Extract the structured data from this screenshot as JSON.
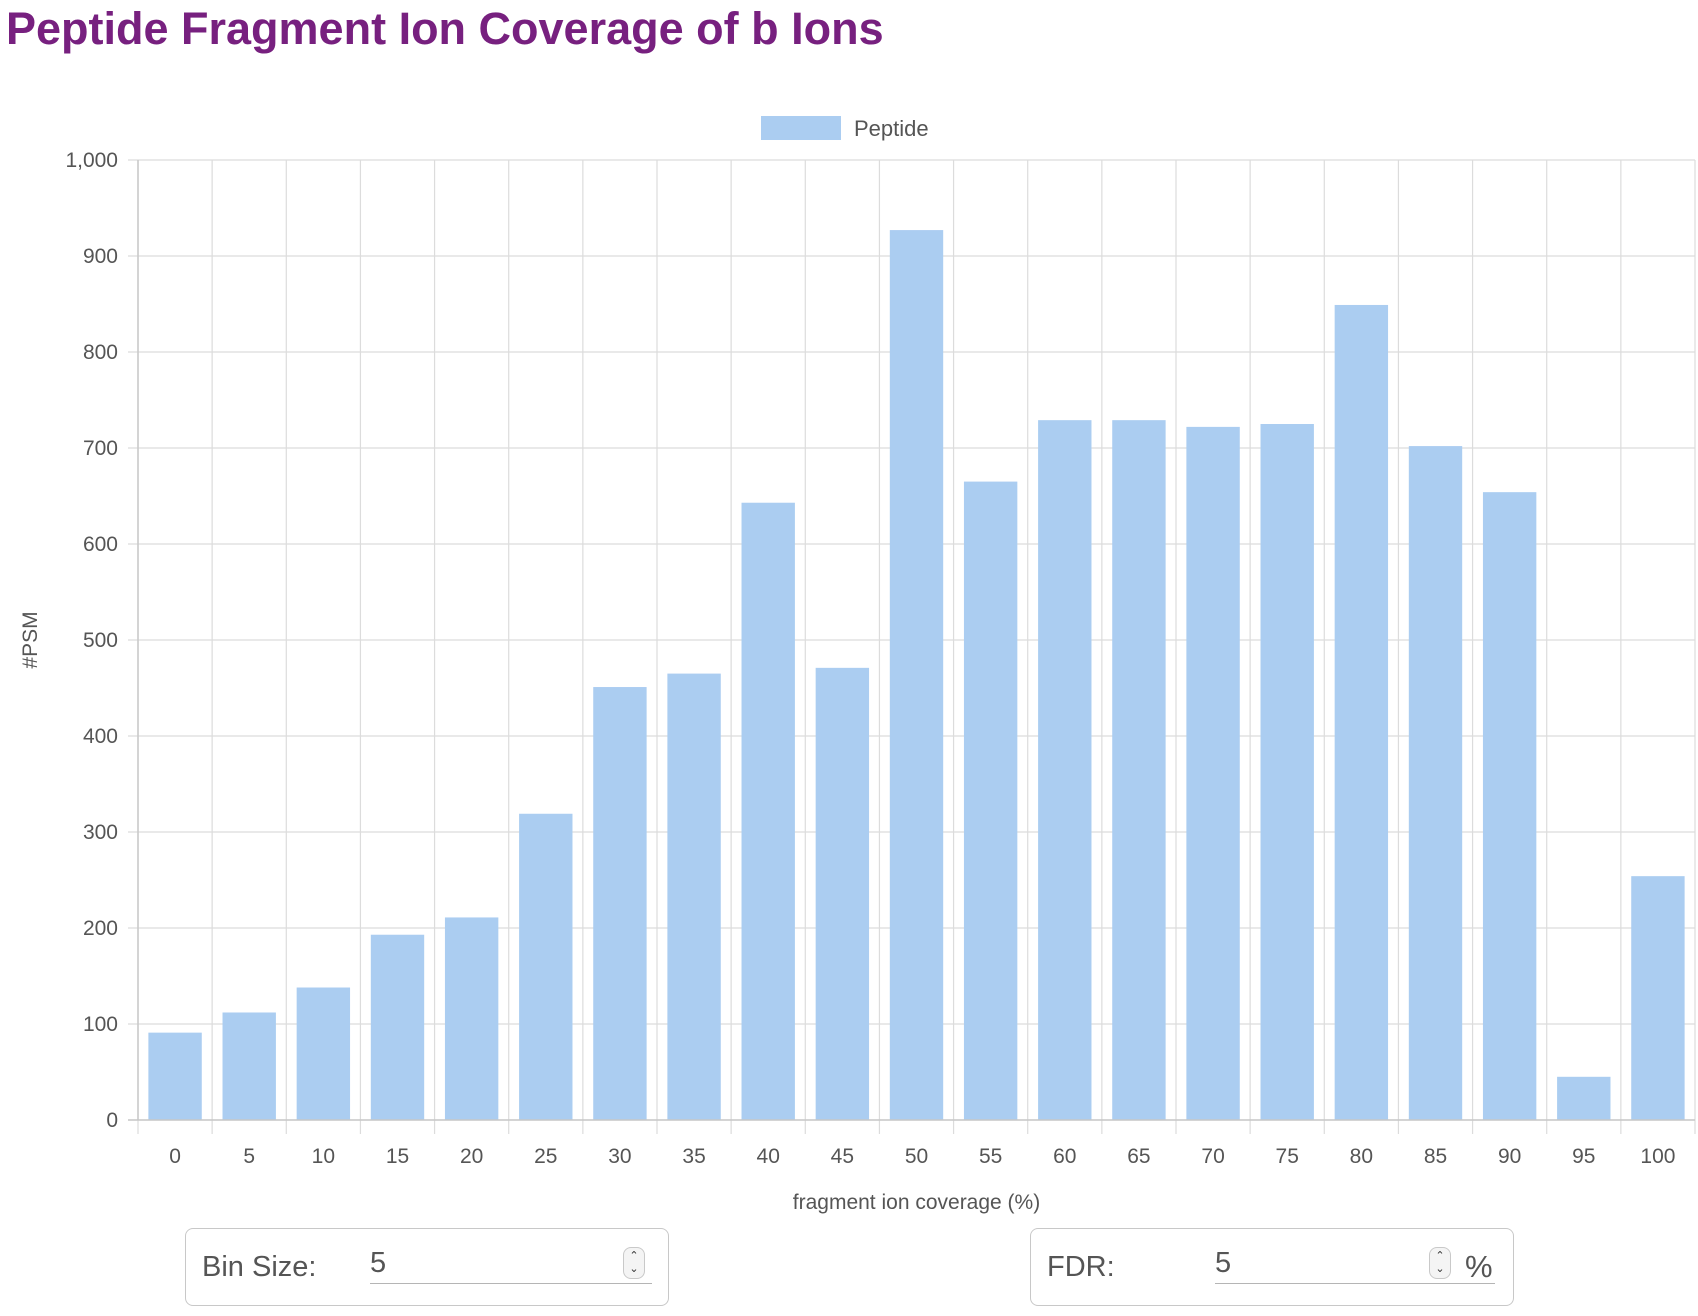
{
  "page": {
    "title": "Peptide Fragment Ion Coverage of b Ions"
  },
  "chart_data": {
    "type": "bar",
    "categories": [
      "0",
      "5",
      "10",
      "15",
      "20",
      "25",
      "30",
      "35",
      "40",
      "45",
      "50",
      "55",
      "60",
      "65",
      "70",
      "75",
      "80",
      "85",
      "90",
      "95",
      "100"
    ],
    "series": [
      {
        "name": "Peptide",
        "values": [
          91,
          112,
          138,
          193,
          211,
          319,
          451,
          465,
          643,
          471,
          927,
          665,
          729,
          729,
          722,
          725,
          849,
          702,
          654,
          45,
          254
        ]
      }
    ],
    "xlabel": "fragment ion coverage (%)",
    "ylabel": "#PSM",
    "ylim": [
      0,
      1000
    ],
    "yticks": [
      "0",
      "100",
      "200",
      "300",
      "400",
      "500",
      "600",
      "700",
      "800",
      "900",
      "1,000"
    ],
    "grid": true,
    "legend": "top-center",
    "colors": {
      "bar": "#abcdf1",
      "grid": "#dcdcdc",
      "axis": "#c8c8c8",
      "text": "#555555"
    }
  },
  "controls": {
    "bin_size": {
      "label": "Bin Size:",
      "value": "5"
    },
    "fdr": {
      "label": "FDR:",
      "value": "5",
      "unit": "%"
    }
  }
}
